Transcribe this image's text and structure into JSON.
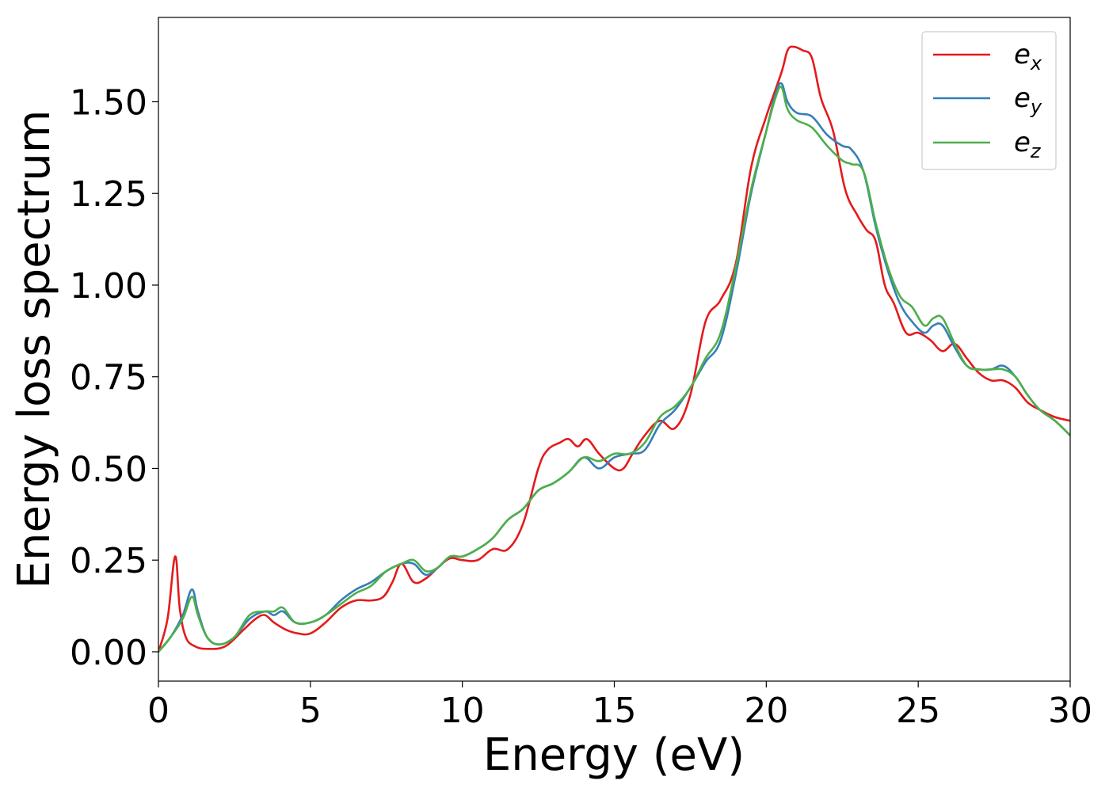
{
  "chart_data": {
    "type": "line",
    "title": "",
    "xlabel": "Energy (eV)",
    "ylabel": "Energy loss spectrum",
    "xlim": [
      0,
      30
    ],
    "ylim": [
      -0.08,
      1.73
    ],
    "xticks": [
      0,
      5,
      10,
      15,
      20,
      25,
      30
    ],
    "xtick_labels": [
      "0",
      "5",
      "10",
      "15",
      "20",
      "25",
      "30"
    ],
    "yticks": [
      0.0,
      0.25,
      0.5,
      0.75,
      1.0,
      1.25,
      1.5
    ],
    "ytick_labels": [
      "0.00",
      "0.25",
      "0.50",
      "0.75",
      "1.00",
      "1.25",
      "1.50"
    ],
    "grid": false,
    "legend_position": "top-right",
    "series": [
      {
        "name": "e",
        "subscript": "x",
        "color": "#e41a1c",
        "x": [
          0,
          0.3,
          0.55,
          0.7,
          0.9,
          1.2,
          1.6,
          2.2,
          2.8,
          3.2,
          3.5,
          3.8,
          4.2,
          4.6,
          5.0,
          5.5,
          6.0,
          6.5,
          7.0,
          7.4,
          7.7,
          8.0,
          8.4,
          8.8,
          9.2,
          9.6,
          10.0,
          10.5,
          11.0,
          11.5,
          12.0,
          12.5,
          12.8,
          13.2,
          13.5,
          13.8,
          14.1,
          14.5,
          15.0,
          15.3,
          15.6,
          16.0,
          16.5,
          17.0,
          17.5,
          18.0,
          18.5,
          19.0,
          19.5,
          20.0,
          20.5,
          20.7,
          20.9,
          21.2,
          21.5,
          21.8,
          22.2,
          22.6,
          23.0,
          23.3,
          23.6,
          23.9,
          24.2,
          24.6,
          25.0,
          25.4,
          25.8,
          26.2,
          26.6,
          27.0,
          27.4,
          27.8,
          28.2,
          28.6,
          29.0,
          29.5,
          30.0
        ],
        "y": [
          0.0,
          0.09,
          0.26,
          0.12,
          0.04,
          0.015,
          0.008,
          0.015,
          0.06,
          0.09,
          0.1,
          0.08,
          0.06,
          0.05,
          0.05,
          0.08,
          0.12,
          0.14,
          0.14,
          0.15,
          0.19,
          0.24,
          0.19,
          0.2,
          0.23,
          0.255,
          0.25,
          0.25,
          0.28,
          0.28,
          0.35,
          0.5,
          0.55,
          0.57,
          0.58,
          0.56,
          0.58,
          0.54,
          0.5,
          0.5,
          0.54,
          0.59,
          0.63,
          0.61,
          0.7,
          0.9,
          0.96,
          1.06,
          1.32,
          1.46,
          1.58,
          1.64,
          1.65,
          1.64,
          1.62,
          1.51,
          1.42,
          1.26,
          1.19,
          1.15,
          1.12,
          1.0,
          0.95,
          0.87,
          0.87,
          0.85,
          0.82,
          0.84,
          0.8,
          0.76,
          0.74,
          0.74,
          0.72,
          0.68,
          0.66,
          0.64,
          0.63
        ]
      },
      {
        "name": "e",
        "subscript": "y",
        "color": "#377eb8",
        "x": [
          0,
          0.4,
          0.8,
          1.1,
          1.3,
          1.6,
          2.0,
          2.5,
          3.0,
          3.5,
          3.8,
          4.1,
          4.5,
          5.0,
          5.5,
          6.0,
          6.5,
          7.0,
          7.5,
          8.0,
          8.4,
          8.8,
          9.2,
          9.6,
          10.0,
          10.5,
          11.0,
          11.5,
          12.0,
          12.5,
          13.0,
          13.5,
          14.0,
          14.5,
          15.0,
          15.5,
          16.0,
          16.5,
          17.0,
          17.5,
          18.0,
          18.5,
          19.0,
          19.5,
          20.0,
          20.3,
          20.5,
          20.7,
          21.0,
          21.5,
          22.0,
          22.5,
          22.8,
          23.2,
          23.6,
          24.0,
          24.4,
          24.8,
          25.2,
          25.5,
          25.8,
          26.2,
          26.6,
          27.0,
          27.4,
          27.8,
          28.2,
          28.6,
          29.0,
          29.5,
          30.0
        ],
        "y": [
          0.0,
          0.04,
          0.1,
          0.17,
          0.11,
          0.04,
          0.02,
          0.04,
          0.09,
          0.11,
          0.1,
          0.11,
          0.08,
          0.08,
          0.1,
          0.14,
          0.17,
          0.19,
          0.22,
          0.24,
          0.24,
          0.21,
          0.23,
          0.26,
          0.26,
          0.28,
          0.31,
          0.36,
          0.39,
          0.44,
          0.46,
          0.49,
          0.53,
          0.5,
          0.53,
          0.54,
          0.55,
          0.62,
          0.66,
          0.72,
          0.79,
          0.85,
          1.03,
          1.25,
          1.42,
          1.52,
          1.55,
          1.5,
          1.47,
          1.46,
          1.41,
          1.38,
          1.37,
          1.31,
          1.16,
          1.04,
          0.95,
          0.9,
          0.87,
          0.89,
          0.89,
          0.83,
          0.78,
          0.77,
          0.77,
          0.78,
          0.75,
          0.7,
          0.66,
          0.63,
          0.59
        ]
      },
      {
        "name": "e",
        "subscript": "z",
        "color": "#4daf4a",
        "x": [
          0,
          0.4,
          0.8,
          1.1,
          1.3,
          1.6,
          2.0,
          2.5,
          3.0,
          3.5,
          3.8,
          4.1,
          4.5,
          5.0,
          5.5,
          6.0,
          6.5,
          7.0,
          7.5,
          8.0,
          8.4,
          8.8,
          9.2,
          9.6,
          10.0,
          10.5,
          11.0,
          11.5,
          12.0,
          12.5,
          13.0,
          13.5,
          14.0,
          14.5,
          15.0,
          15.5,
          16.0,
          16.5,
          17.0,
          17.5,
          18.0,
          18.5,
          19.0,
          19.5,
          20.0,
          20.3,
          20.5,
          20.7,
          21.0,
          21.5,
          22.0,
          22.5,
          22.8,
          23.2,
          23.6,
          24.0,
          24.4,
          24.8,
          25.2,
          25.5,
          25.8,
          26.2,
          26.6,
          27.0,
          27.4,
          27.8,
          28.2,
          28.6,
          29.0,
          29.5,
          30.0
        ],
        "y": [
          0.0,
          0.04,
          0.09,
          0.15,
          0.1,
          0.04,
          0.02,
          0.04,
          0.1,
          0.11,
          0.11,
          0.12,
          0.08,
          0.08,
          0.1,
          0.13,
          0.16,
          0.18,
          0.22,
          0.24,
          0.25,
          0.22,
          0.23,
          0.26,
          0.26,
          0.28,
          0.31,
          0.36,
          0.39,
          0.44,
          0.46,
          0.49,
          0.53,
          0.52,
          0.54,
          0.54,
          0.57,
          0.64,
          0.67,
          0.72,
          0.8,
          0.87,
          1.05,
          1.26,
          1.42,
          1.51,
          1.54,
          1.48,
          1.45,
          1.43,
          1.38,
          1.34,
          1.33,
          1.31,
          1.17,
          1.05,
          0.97,
          0.94,
          0.89,
          0.91,
          0.91,
          0.84,
          0.78,
          0.77,
          0.77,
          0.77,
          0.75,
          0.7,
          0.66,
          0.63,
          0.59
        ]
      }
    ]
  }
}
